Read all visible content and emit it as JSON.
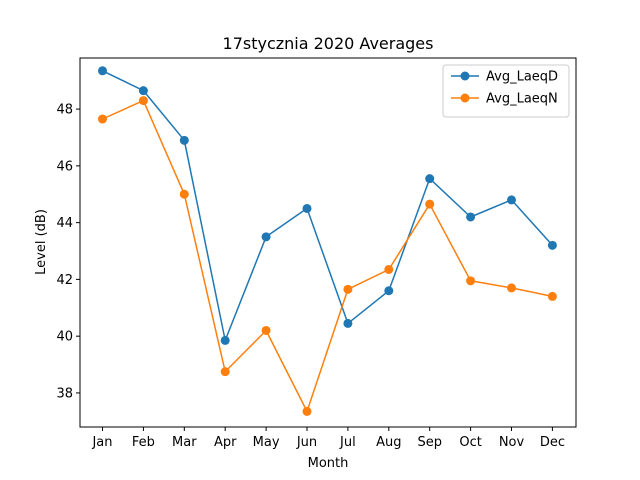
{
  "chart_data": {
    "type": "line",
    "title": "17stycznia 2020 Averages",
    "xlabel": "Month",
    "ylabel": "Level (dB)",
    "categories": [
      "Jan",
      "Feb",
      "Mar",
      "Apr",
      "May",
      "Jun",
      "Jul",
      "Aug",
      "Sep",
      "Oct",
      "Nov",
      "Dec"
    ],
    "ylim": [
      36.8,
      49.8
    ],
    "yticks": [
      38,
      40,
      42,
      44,
      46,
      48
    ],
    "grid": false,
    "legend_position": "top-right",
    "series": [
      {
        "name": "Avg_LaeqD",
        "color": "#1f77b4",
        "marker": "circle",
        "values": [
          49.35,
          48.65,
          46.9,
          39.85,
          43.5,
          44.5,
          40.45,
          41.6,
          45.55,
          44.2,
          44.8,
          43.2
        ]
      },
      {
        "name": "Avg_LaeqN",
        "color": "#ff7f0e",
        "marker": "circle",
        "values": [
          47.65,
          48.3,
          45.0,
          38.75,
          40.2,
          37.35,
          41.65,
          42.35,
          44.65,
          41.95,
          41.7,
          41.4
        ]
      }
    ]
  }
}
